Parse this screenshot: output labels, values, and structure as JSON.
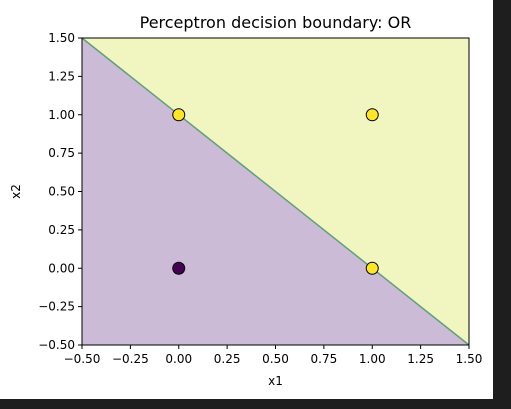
{
  "chart_data": {
    "type": "scatter",
    "title": "Perceptron decision boundary: OR",
    "xlabel": "x1",
    "ylabel": "x2",
    "xlim": [
      -0.5,
      1.5
    ],
    "ylim": [
      -0.5,
      1.5
    ],
    "xticks": [
      "−0.50",
      "−0.25",
      "0.00",
      "0.25",
      "0.50",
      "0.75",
      "1.00",
      "1.25",
      "1.50"
    ],
    "yticks": [
      "−0.50",
      "−0.25",
      "0.00",
      "0.25",
      "0.50",
      "0.75",
      "1.00",
      "1.25",
      "1.50"
    ],
    "grid": false,
    "points": [
      {
        "x": 0,
        "y": 0,
        "label": 0
      },
      {
        "x": 0,
        "y": 1,
        "label": 1
      },
      {
        "x": 1,
        "y": 0,
        "label": 1
      },
      {
        "x": 1,
        "y": 1,
        "label": 1
      }
    ],
    "decision_boundary": {
      "x_start": -0.5,
      "y_start": 1.5,
      "x_end": 1.5,
      "y_end": -0.5
    },
    "region_colors": {
      "class_0": "#cbbbd6",
      "class_1": "#f1f6c1"
    },
    "boundary_color": "#5fa07a",
    "point_colors": {
      "class_0": "#440154",
      "class_1": "#fde725"
    }
  }
}
